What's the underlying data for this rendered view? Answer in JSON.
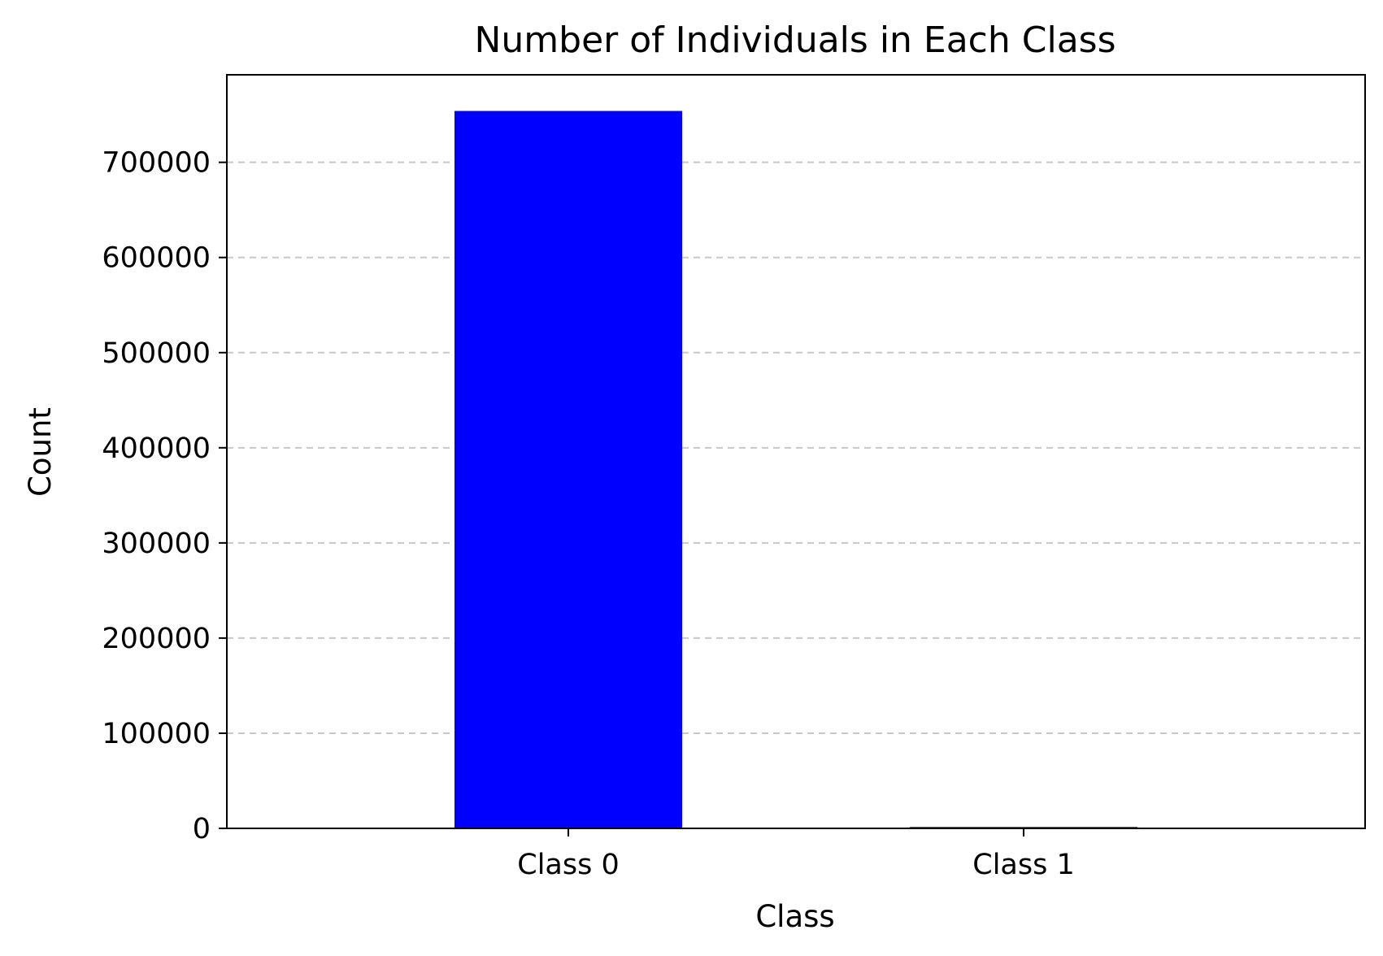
{
  "chart_data": {
    "type": "bar",
    "title": "Number of Individuals in Each Class",
    "xlabel": "Class",
    "ylabel": "Count",
    "categories": [
      "Class 0",
      "Class 1"
    ],
    "values": [
      754000,
      1600
    ],
    "colors": [
      "#0000ff",
      "#ff0000"
    ],
    "ylim": [
      0,
      792000
    ],
    "yticks": [
      0,
      100000,
      200000,
      300000,
      400000,
      500000,
      600000,
      700000
    ],
    "ytick_labels": [
      "0",
      "100000",
      "200000",
      "300000",
      "400000",
      "500000",
      "600000",
      "700000"
    ],
    "grid": {
      "axis": "y",
      "style": "dashed",
      "color": "#c8c8c8"
    },
    "legend": "none"
  }
}
